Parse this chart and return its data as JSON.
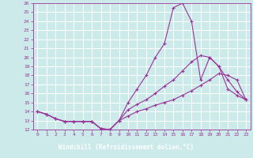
{
  "xlabel": "Windchill (Refroidissement éolien,°C)",
  "xlim": [
    -0.5,
    23.5
  ],
  "ylim": [
    12,
    26
  ],
  "yticks": [
    12,
    13,
    14,
    15,
    16,
    17,
    18,
    19,
    20,
    21,
    22,
    23,
    24,
    25,
    26
  ],
  "xticks": [
    0,
    1,
    2,
    3,
    4,
    5,
    6,
    7,
    8,
    9,
    10,
    11,
    12,
    13,
    14,
    15,
    16,
    17,
    18,
    19,
    20,
    21,
    22,
    23
  ],
  "bg_color": "#cceaea",
  "line_color": "#993399",
  "grid_color": "#ffffff",
  "xlabel_bg": "#993399",
  "xlabel_fg": "#ffffff",
  "line1_x": [
    0,
    1,
    2,
    3,
    4,
    5,
    6,
    7,
    8,
    9,
    10,
    11,
    12,
    13,
    14,
    15,
    16,
    17,
    18,
    19,
    20,
    21,
    22,
    23
  ],
  "line1_y": [
    14.0,
    13.7,
    13.2,
    12.9,
    12.9,
    12.9,
    12.9,
    12.1,
    12.0,
    13.0,
    15.0,
    16.5,
    18.0,
    20.0,
    21.5,
    25.5,
    26.0,
    24.0,
    17.5,
    20.0,
    19.0,
    16.5,
    15.8,
    15.3
  ],
  "line2_x": [
    0,
    1,
    2,
    3,
    4,
    5,
    6,
    7,
    8,
    9,
    10,
    11,
    12,
    13,
    14,
    15,
    16,
    17,
    18,
    19,
    20,
    21,
    22,
    23
  ],
  "line2_y": [
    14.0,
    13.7,
    13.2,
    12.9,
    12.9,
    12.9,
    12.9,
    12.1,
    12.0,
    13.0,
    14.2,
    14.8,
    15.3,
    16.0,
    16.8,
    17.5,
    18.5,
    19.5,
    20.2,
    20.0,
    19.0,
    17.5,
    16.2,
    15.3
  ],
  "line3_x": [
    0,
    1,
    2,
    3,
    4,
    5,
    6,
    7,
    8,
    9,
    10,
    11,
    12,
    13,
    14,
    15,
    16,
    17,
    18,
    19,
    20,
    21,
    22,
    23
  ],
  "line3_y": [
    14.0,
    13.7,
    13.2,
    12.9,
    12.9,
    12.9,
    12.9,
    12.1,
    12.0,
    13.0,
    13.5,
    14.0,
    14.3,
    14.7,
    15.0,
    15.3,
    15.8,
    16.3,
    16.9,
    17.5,
    18.2,
    18.0,
    17.5,
    15.3
  ]
}
